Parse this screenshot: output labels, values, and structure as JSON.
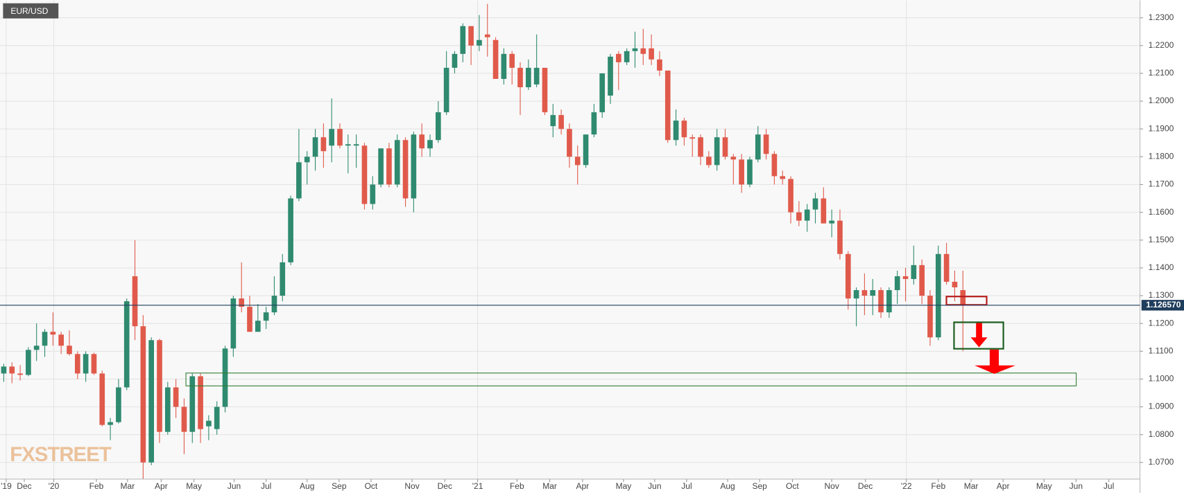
{
  "chart_data": {
    "type": "candlestick",
    "title": "EUR/USD",
    "watermark": "FXSTREET",
    "up_color": "#2f8a6f",
    "down_color": "#e05a4b",
    "last_price": {
      "value": 1.12657,
      "label": "1.126570"
    },
    "x": [
      0,
      1,
      2,
      3,
      4,
      5,
      6,
      7,
      8,
      9,
      10,
      11,
      12,
      13,
      14,
      15,
      16,
      17,
      18,
      19,
      20,
      21,
      22,
      23,
      24,
      25,
      26,
      27,
      28,
      29,
      30,
      31,
      32,
      33,
      34,
      35,
      36,
      37,
      38,
      39,
      40,
      41,
      42,
      43,
      44,
      45,
      46,
      47,
      48,
      49,
      50,
      51,
      52,
      53,
      54,
      55,
      56,
      57,
      58,
      59,
      60,
      61,
      62,
      63,
      64,
      65,
      66,
      67,
      68,
      69,
      70,
      71,
      72,
      73,
      74,
      75,
      76,
      77,
      78,
      79,
      80,
      81,
      82,
      83,
      84,
      85,
      86,
      87,
      88,
      89,
      90,
      91,
      92,
      93,
      94,
      95,
      96,
      97,
      98,
      99,
      100,
      101,
      102,
      103,
      104,
      105,
      106,
      107,
      108,
      109,
      110,
      111,
      112,
      113,
      114,
      115,
      116,
      117
    ],
    "series": [
      {
        "name": "EUR/USD",
        "open": [
          1.102,
          1.1045,
          1.102,
          1.1015,
          1.1105,
          1.112,
          1.117,
          1.116,
          1.112,
          1.109,
          1.102,
          1.109,
          1.102,
          1.0835,
          1.0845,
          1.097,
          1.137,
          1.119,
          1.07,
          1.114,
          1.081,
          1.097,
          1.09,
          1.081,
          1.101,
          1.083,
          1.082,
          1.09,
          1.111,
          1.129,
          1.126,
          1.117,
          1.121,
          1.124,
          1.13,
          1.142,
          1.165,
          1.178,
          1.18,
          1.187,
          1.184,
          1.19,
          1.184,
          1.184,
          1.184,
          1.163,
          1.17,
          1.183,
          1.17,
          1.186,
          1.165,
          1.188,
          1.183,
          1.186,
          1.196,
          1.212,
          1.217,
          1.227,
          1.22,
          1.224,
          1.222,
          1.208,
          1.217,
          1.212,
          1.205,
          1.206,
          1.212,
          1.191,
          1.195,
          1.19,
          1.18,
          1.177,
          1.188,
          1.196,
          1.202,
          1.217,
          1.214,
          1.218,
          1.219,
          1.219,
          1.215,
          1.211,
          1.186,
          1.193,
          1.187,
          1.187,
          1.18,
          1.177,
          1.187,
          1.18,
          1.179,
          1.17,
          1.179,
          1.188,
          1.181,
          1.173,
          1.172,
          1.16,
          1.157,
          1.161,
          1.165,
          1.156,
          1.157,
          1.145,
          1.129,
          1.132,
          1.13,
          1.132,
          1.124,
          1.132,
          1.137,
          1.136,
          1.141,
          1.13,
          1.115,
          1.145,
          1.135,
          1.132
        ],
        "high": [
          1.1055,
          1.106,
          1.105,
          1.1115,
          1.12,
          1.118,
          1.124,
          1.117,
          1.1175,
          1.11,
          1.11,
          1.1095,
          1.103,
          1.086,
          1.1,
          1.129,
          1.15,
          1.123,
          1.115,
          1.1145,
          1.099,
          1.1,
          1.093,
          1.102,
          1.102,
          1.087,
          1.092,
          1.112,
          1.13,
          1.142,
          1.13,
          1.127,
          1.126,
          1.137,
          1.145,
          1.166,
          1.19,
          1.182,
          1.19,
          1.192,
          1.201,
          1.192,
          1.188,
          1.188,
          1.185,
          1.173,
          1.183,
          1.185,
          1.188,
          1.187,
          1.189,
          1.192,
          1.188,
          1.2,
          1.218,
          1.218,
          1.228,
          1.227,
          1.231,
          1.235,
          1.223,
          1.219,
          1.218,
          1.214,
          1.215,
          1.224,
          1.212,
          1.199,
          1.197,
          1.192,
          1.184,
          1.188,
          1.199,
          1.21,
          1.217,
          1.218,
          1.219,
          1.225,
          1.226,
          1.224,
          1.218,
          1.211,
          1.197,
          1.194,
          1.188,
          1.188,
          1.182,
          1.19,
          1.19,
          1.181,
          1.181,
          1.18,
          1.191,
          1.19,
          1.182,
          1.175,
          1.173,
          1.164,
          1.163,
          1.167,
          1.169,
          1.161,
          1.161,
          1.146,
          1.133,
          1.138,
          1.136,
          1.133,
          1.133,
          1.139,
          1.14,
          1.148,
          1.143,
          1.132,
          1.148,
          1.149,
          1.139,
          1.139
        ],
        "low": [
          1.099,
          1.0985,
          1.0995,
          1.101,
          1.1065,
          1.108,
          1.112,
          1.109,
          1.1085,
          1.1,
          1.099,
          1.1015,
          1.083,
          1.078,
          1.084,
          1.096,
          1.114,
          1.064,
          1.069,
          1.077,
          1.08,
          1.086,
          1.073,
          1.077,
          1.077,
          1.078,
          1.08,
          1.088,
          1.108,
          1.124,
          1.117,
          1.117,
          1.118,
          1.123,
          1.128,
          1.141,
          1.164,
          1.17,
          1.175,
          1.176,
          1.178,
          1.183,
          1.174,
          1.176,
          1.161,
          1.161,
          1.169,
          1.169,
          1.169,
          1.162,
          1.16,
          1.18,
          1.18,
          1.185,
          1.195,
          1.21,
          1.214,
          1.213,
          1.218,
          1.216,
          1.208,
          1.206,
          1.206,
          1.195,
          1.204,
          1.205,
          1.195,
          1.187,
          1.188,
          1.176,
          1.17,
          1.176,
          1.187,
          1.194,
          1.199,
          1.204,
          1.213,
          1.212,
          1.213,
          1.213,
          1.209,
          1.185,
          1.184,
          1.184,
          1.18,
          1.177,
          1.176,
          1.175,
          1.179,
          1.17,
          1.167,
          1.169,
          1.178,
          1.179,
          1.17,
          1.17,
          1.156,
          1.155,
          1.153,
          1.156,
          1.156,
          1.151,
          1.143,
          1.125,
          1.119,
          1.123,
          1.123,
          1.122,
          1.122,
          1.127,
          1.128,
          1.134,
          1.127,
          1.112,
          1.114,
          1.134,
          1.128,
          1.11
        ],
        "close": [
          1.1045,
          1.102,
          1.1015,
          1.1105,
          1.112,
          1.117,
          1.116,
          1.112,
          1.109,
          1.102,
          1.109,
          1.102,
          1.0835,
          1.0845,
          1.097,
          1.128,
          1.119,
          1.07,
          1.114,
          1.081,
          1.097,
          1.09,
          1.081,
          1.101,
          1.082,
          1.085,
          1.09,
          1.111,
          1.129,
          1.126,
          1.117,
          1.121,
          1.124,
          1.13,
          1.142,
          1.165,
          1.178,
          1.18,
          1.187,
          1.182,
          1.19,
          1.184,
          1.1845,
          1.1845,
          1.163,
          1.17,
          1.183,
          1.17,
          1.186,
          1.165,
          1.188,
          1.183,
          1.186,
          1.196,
          1.212,
          1.217,
          1.227,
          1.22,
          1.222,
          1.223,
          1.208,
          1.217,
          1.212,
          1.205,
          1.212,
          1.212,
          1.196,
          1.195,
          1.19,
          1.18,
          1.177,
          1.188,
          1.196,
          1.21,
          1.216,
          1.214,
          1.218,
          1.219,
          1.217,
          1.215,
          1.211,
          1.186,
          1.193,
          1.187,
          1.1865,
          1.18,
          1.177,
          1.187,
          1.18,
          1.179,
          1.17,
          1.179,
          1.188,
          1.181,
          1.173,
          1.172,
          1.16,
          1.157,
          1.161,
          1.165,
          1.156,
          1.157,
          1.145,
          1.129,
          1.132,
          1.13,
          1.132,
          1.124,
          1.132,
          1.137,
          1.136,
          1.141,
          1.13,
          1.115,
          1.145,
          1.135,
          1.133,
          1.1266
        ]
      }
    ],
    "xlim": [
      -0.46,
      138.6
    ],
    "xticks": [
      {
        "value": 0.3,
        "label": "'19"
      },
      {
        "value": 2.5,
        "label": "Dec"
      },
      {
        "value": 6.1,
        "label": "'20"
      },
      {
        "value": 11.3,
        "label": "Feb"
      },
      {
        "value": 15.1,
        "label": "Mar"
      },
      {
        "value": 19.2,
        "label": "Apr"
      },
      {
        "value": 23.2,
        "label": "May"
      },
      {
        "value": 28.1,
        "label": "Jun"
      },
      {
        "value": 32.0,
        "label": "Jul"
      },
      {
        "value": 37.0,
        "label": "Aug"
      },
      {
        "value": 40.9,
        "label": "Sep"
      },
      {
        "value": 44.8,
        "label": "Oct"
      },
      {
        "value": 49.8,
        "label": "Nov"
      },
      {
        "value": 53.8,
        "label": "Dec"
      },
      {
        "value": 57.8,
        "label": "'21"
      },
      {
        "value": 62.6,
        "label": "Feb"
      },
      {
        "value": 66.6,
        "label": "Mar"
      },
      {
        "value": 70.6,
        "label": "Apr"
      },
      {
        "value": 75.6,
        "label": "May"
      },
      {
        "value": 79.4,
        "label": "Jun"
      },
      {
        "value": 83.3,
        "label": "Jul"
      },
      {
        "value": 88.3,
        "label": "Aug"
      },
      {
        "value": 92.2,
        "label": "Sep"
      },
      {
        "value": 96.2,
        "label": "Oct"
      },
      {
        "value": 101.0,
        "label": "Nov"
      },
      {
        "value": 105.1,
        "label": "Dec"
      },
      {
        "value": 110.1,
        "label": "'22"
      },
      {
        "value": 114.0,
        "label": "Feb"
      },
      {
        "value": 118.0,
        "label": "Mar"
      },
      {
        "value": 121.9,
        "label": "Apr"
      },
      {
        "value": 126.9,
        "label": "May"
      },
      {
        "value": 130.8,
        "label": "Jun"
      },
      {
        "value": 134.8,
        "label": "Jul"
      }
    ],
    "ylim": [
      1.064,
      1.2363
    ],
    "yticks": [
      {
        "value": 1.07,
        "label": "1.0700"
      },
      {
        "value": 1.08,
        "label": "1.0800"
      },
      {
        "value": 1.09,
        "label": "1.0900"
      },
      {
        "value": 1.1,
        "label": "1.1000"
      },
      {
        "value": 1.11,
        "label": "1.1100"
      },
      {
        "value": 1.12,
        "label": "1.1200"
      },
      {
        "value": 1.13,
        "label": "1.1300"
      },
      {
        "value": 1.14,
        "label": "1.1400"
      },
      {
        "value": 1.15,
        "label": "1.1500"
      },
      {
        "value": 1.16,
        "label": "1.1600"
      },
      {
        "value": 1.17,
        "label": "1.1700"
      },
      {
        "value": 1.18,
        "label": "1.1800"
      },
      {
        "value": 1.19,
        "label": "1.1900"
      },
      {
        "value": 1.2,
        "label": "1.2000"
      },
      {
        "value": 1.21,
        "label": "1.2100"
      },
      {
        "value": 1.22,
        "label": "1.2200"
      },
      {
        "value": 1.23,
        "label": "1.2300"
      }
    ],
    "grid": true
  }
}
